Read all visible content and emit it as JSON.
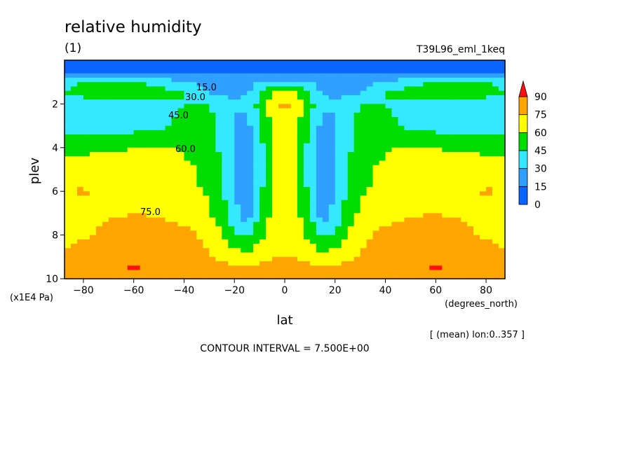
{
  "chart_data": {
    "type": "heatmap",
    "title": "relative humidity",
    "subtitle": "(1)",
    "run_label": "T39L96_eml_1keq",
    "xlabel": "lat",
    "x_units": "(degrees_north)",
    "ylabel": "plev",
    "y_units": "(x1E4 Pa)",
    "x_ticks": [
      -80,
      -60,
      -40,
      -20,
      0,
      20,
      40,
      60,
      80
    ],
    "y_ticks": [
      2,
      4,
      6,
      8,
      10
    ],
    "xlim": [
      -87.5,
      87.5
    ],
    "ylim": [
      0.0,
      10
    ],
    "y_inverted": true,
    "mean_note": "[ (mean) lon:0..357 ]",
    "contour_interval_text": "CONTOUR INTERVAL = 7.500E+00",
    "contour_labels": [
      "15.0",
      "30.0",
      "45.0",
      "60.0",
      "75.0"
    ],
    "colorbar": {
      "levels": [
        0,
        15,
        30,
        45,
        60,
        75,
        90
      ],
      "labels": [
        "0",
        "15",
        "30",
        "45",
        "60",
        "75",
        "90"
      ],
      "colors": [
        "#0a64ff",
        "#2fa0ff",
        "#33e8ff",
        "#00dd00",
        "#ffff00",
        "#ffa500",
        "#ff1010"
      ]
    },
    "lat": [
      -87.5,
      -80,
      -70,
      -60,
      -50,
      -40,
      -30,
      -25,
      -20,
      -15,
      -10,
      -5,
      0,
      5,
      10,
      15,
      20,
      25,
      30,
      40,
      50,
      60,
      70,
      80,
      87.5
    ],
    "plev": [
      0.0,
      0.5,
      1.0,
      1.5,
      2.0,
      3.0,
      4.0,
      5.0,
      6.0,
      7.0,
      8.0,
      9.0,
      9.5,
      10.0
    ],
    "values": [
      [
        5,
        5,
        5,
        5,
        5,
        5,
        5,
        5,
        5,
        5,
        5,
        5,
        5,
        5,
        5,
        5,
        5,
        5,
        5,
        5,
        5,
        5,
        5,
        5,
        5
      ],
      [
        12,
        12,
        12,
        12,
        12,
        12,
        12,
        12,
        12,
        12,
        12,
        12,
        12,
        12,
        12,
        12,
        12,
        12,
        12,
        12,
        12,
        12,
        12,
        12,
        12
      ],
      [
        40,
        48,
        48,
        46,
        40,
        30,
        25,
        22,
        20,
        24,
        30,
        33,
        34,
        33,
        30,
        24,
        20,
        22,
        25,
        30,
        40,
        46,
        48,
        48,
        40
      ],
      [
        46,
        50,
        52,
        52,
        50,
        45,
        30,
        28,
        26,
        30,
        40,
        60,
        70,
        60,
        40,
        30,
        26,
        28,
        30,
        45,
        50,
        52,
        52,
        50,
        46
      ],
      [
        36,
        38,
        38,
        40,
        42,
        45,
        46,
        38,
        30,
        35,
        50,
        70,
        78,
        70,
        50,
        35,
        30,
        38,
        46,
        45,
        42,
        40,
        38,
        38,
        36
      ],
      [
        35,
        36,
        36,
        38,
        42,
        48,
        48,
        40,
        28,
        25,
        44,
        62,
        72,
        62,
        44,
        25,
        28,
        40,
        48,
        48,
        42,
        38,
        36,
        36,
        35
      ],
      [
        55,
        55,
        57,
        60,
        62,
        58,
        50,
        42,
        30,
        20,
        40,
        58,
        67,
        58,
        40,
        20,
        30,
        42,
        50,
        58,
        62,
        60,
        57,
        55,
        55
      ],
      [
        68,
        70,
        70,
        68,
        67,
        64,
        55,
        45,
        32,
        15,
        38,
        60,
        65,
        60,
        38,
        15,
        32,
        45,
        55,
        64,
        67,
        68,
        70,
        70,
        68
      ],
      [
        74,
        76,
        72,
        70,
        68,
        65,
        58,
        47,
        33,
        12,
        40,
        62,
        66,
        62,
        40,
        12,
        33,
        47,
        58,
        65,
        68,
        70,
        72,
        76,
        74
      ],
      [
        72,
        73,
        74,
        75,
        74,
        70,
        62,
        50,
        36,
        20,
        45,
        64,
        67,
        64,
        45,
        20,
        36,
        50,
        62,
        70,
        74,
        75,
        74,
        73,
        72
      ],
      [
        70,
        74,
        77,
        79,
        80,
        79,
        72,
        60,
        47,
        42,
        55,
        66,
        68,
        66,
        55,
        42,
        47,
        60,
        72,
        79,
        80,
        79,
        77,
        74,
        70
      ],
      [
        78,
        80,
        82,
        84,
        82,
        80,
        76,
        72,
        68,
        65,
        70,
        74,
        76,
        74,
        70,
        65,
        68,
        72,
        76,
        80,
        82,
        84,
        82,
        80,
        78
      ],
      [
        80,
        82,
        85,
        91,
        84,
        82,
        80,
        79,
        78,
        77,
        78,
        79,
        80,
        79,
        78,
        77,
        78,
        79,
        80,
        82,
        84,
        91,
        85,
        82,
        80
      ],
      [
        79,
        80,
        80,
        80,
        80,
        80,
        79,
        78,
        77,
        77,
        77,
        78,
        79,
        78,
        77,
        77,
        77,
        78,
        79,
        80,
        80,
        80,
        80,
        80,
        79
      ]
    ]
  }
}
